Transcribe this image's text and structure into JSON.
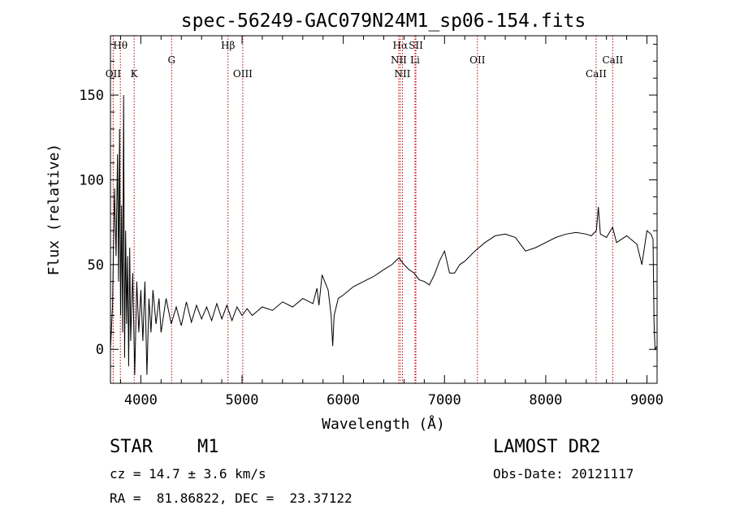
{
  "chart_data": {
    "type": "line",
    "title": "spec-56249-GAC079N24M1_sp06-154.fits",
    "xlabel": "Wavelength (Å)",
    "ylabel": "Flux (relative)",
    "xlim": [
      3700,
      9100
    ],
    "ylim": [
      -20,
      185
    ],
    "x_ticks": [
      4000,
      5000,
      6000,
      7000,
      8000,
      9000
    ],
    "y_ticks": [
      0,
      50,
      100,
      150
    ],
    "line_color": "#000000",
    "marker_color": "#c00000",
    "lines": [
      {
        "label": "Hθ",
        "wave": 3798,
        "row": 0
      },
      {
        "label": "OII",
        "wave": 3727,
        "row": 2
      },
      {
        "label": "K",
        "wave": 3934,
        "row": 2
      },
      {
        "label": "G",
        "wave": 4304,
        "row": 1
      },
      {
        "label": "Hβ",
        "wave": 4861,
        "row": 0
      },
      {
        "label": "OIII",
        "wave": 5007,
        "row": 2
      },
      {
        "label": "Hα",
        "wave": 6563,
        "row": 0
      },
      {
        "label": "SII",
        "wave": 6717,
        "row": 0
      },
      {
        "label": "NII",
        "wave": 6548,
        "row": 1
      },
      {
        "label": "Li",
        "wave": 6708,
        "row": 1
      },
      {
        "label": "NII",
        "wave": 6584,
        "row": 2
      },
      {
        "label": "OII",
        "wave": 7325,
        "row": 1
      },
      {
        "label": "CaII",
        "wave": 8498,
        "row": 2
      },
      {
        "label": "CaII",
        "wave": 8662,
        "row": 1
      }
    ],
    "spectrum": [
      [
        3700,
        0
      ],
      [
        3720,
        25
      ],
      [
        3740,
        95
      ],
      [
        3755,
        55
      ],
      [
        3770,
        115
      ],
      [
        3780,
        40
      ],
      [
        3790,
        130
      ],
      [
        3800,
        20
      ],
      [
        3810,
        85
      ],
      [
        3820,
        10
      ],
      [
        3830,
        150
      ],
      [
        3840,
        -5
      ],
      [
        3850,
        70
      ],
      [
        3860,
        15
      ],
      [
        3870,
        55
      ],
      [
        3880,
        -10
      ],
      [
        3890,
        60
      ],
      [
        3900,
        5
      ],
      [
        3920,
        45
      ],
      [
        3940,
        -15
      ],
      [
        3960,
        40
      ],
      [
        3980,
        10
      ],
      [
        4000,
        35
      ],
      [
        4020,
        5
      ],
      [
        4040,
        40
      ],
      [
        4060,
        -15
      ],
      [
        4080,
        30
      ],
      [
        4100,
        10
      ],
      [
        4120,
        35
      ],
      [
        4150,
        15
      ],
      [
        4180,
        30
      ],
      [
        4200,
        10
      ],
      [
        4250,
        30
      ],
      [
        4300,
        15
      ],
      [
        4350,
        25
      ],
      [
        4400,
        14
      ],
      [
        4450,
        28
      ],
      [
        4500,
        16
      ],
      [
        4550,
        26
      ],
      [
        4600,
        18
      ],
      [
        4650,
        25
      ],
      [
        4700,
        17
      ],
      [
        4750,
        27
      ],
      [
        4800,
        18
      ],
      [
        4850,
        26
      ],
      [
        4900,
        17
      ],
      [
        4950,
        25
      ],
      [
        5000,
        20
      ],
      [
        5050,
        24
      ],
      [
        5100,
        20
      ],
      [
        5200,
        25
      ],
      [
        5300,
        23
      ],
      [
        5400,
        28
      ],
      [
        5500,
        25
      ],
      [
        5600,
        30
      ],
      [
        5700,
        27
      ],
      [
        5740,
        36
      ],
      [
        5760,
        26
      ],
      [
        5790,
        44
      ],
      [
        5850,
        35
      ],
      [
        5880,
        20
      ],
      [
        5895,
        2
      ],
      [
        5910,
        20
      ],
      [
        5950,
        30
      ],
      [
        6000,
        32
      ],
      [
        6100,
        37
      ],
      [
        6200,
        40
      ],
      [
        6300,
        43
      ],
      [
        6400,
        47
      ],
      [
        6480,
        50
      ],
      [
        6550,
        54
      ],
      [
        6600,
        50
      ],
      [
        6650,
        47
      ],
      [
        6700,
        45
      ],
      [
        6750,
        41
      ],
      [
        6800,
        40
      ],
      [
        6850,
        38
      ],
      [
        6900,
        44
      ],
      [
        6950,
        52
      ],
      [
        7000,
        58
      ],
      [
        7050,
        45
      ],
      [
        7100,
        45
      ],
      [
        7150,
        50
      ],
      [
        7200,
        52
      ],
      [
        7300,
        58
      ],
      [
        7400,
        63
      ],
      [
        7500,
        67
      ],
      [
        7600,
        68
      ],
      [
        7700,
        66
      ],
      [
        7750,
        62
      ],
      [
        7800,
        58
      ],
      [
        7900,
        60
      ],
      [
        8000,
        63
      ],
      [
        8100,
        66
      ],
      [
        8200,
        68
      ],
      [
        8300,
        69
      ],
      [
        8400,
        68
      ],
      [
        8450,
        67
      ],
      [
        8500,
        70
      ],
      [
        8520,
        84
      ],
      [
        8540,
        68
      ],
      [
        8600,
        66
      ],
      [
        8660,
        72
      ],
      [
        8700,
        63
      ],
      [
        8800,
        67
      ],
      [
        8900,
        62
      ],
      [
        8950,
        50
      ],
      [
        9000,
        70
      ],
      [
        9040,
        68
      ],
      [
        9060,
        65
      ],
      [
        9070,
        15
      ],
      [
        9080,
        0
      ],
      [
        9100,
        2
      ]
    ]
  },
  "footer": {
    "object_type": "STAR",
    "subclass": "M1",
    "survey": "LAMOST DR2",
    "cz": "cz = 14.7 ± 3.6 km/s",
    "obs_date": "Obs-Date: 20121117",
    "coords": "RA =  81.86822, DEC =  23.37122"
  }
}
